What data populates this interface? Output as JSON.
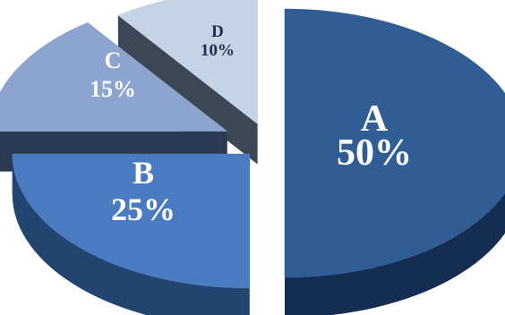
{
  "chart_data": {
    "type": "pie",
    "style": "3d-exploded",
    "title": "",
    "slices": [
      {
        "label": "A",
        "value": 50,
        "value_label": "50%",
        "color": "#2f5d94",
        "side_color": "#142d50"
      },
      {
        "label": "B",
        "value": 25,
        "value_label": "25%",
        "color": "#4a7ac0",
        "side_color": "#22456f"
      },
      {
        "label": "C",
        "value": 15,
        "value_label": "15%",
        "color": "#8ca4cf",
        "side_color": "#2a3a52"
      },
      {
        "label": "D",
        "value": 10,
        "value_label": "10%",
        "color": "#c6d2e6",
        "side_color": "#3c4756"
      }
    ]
  }
}
